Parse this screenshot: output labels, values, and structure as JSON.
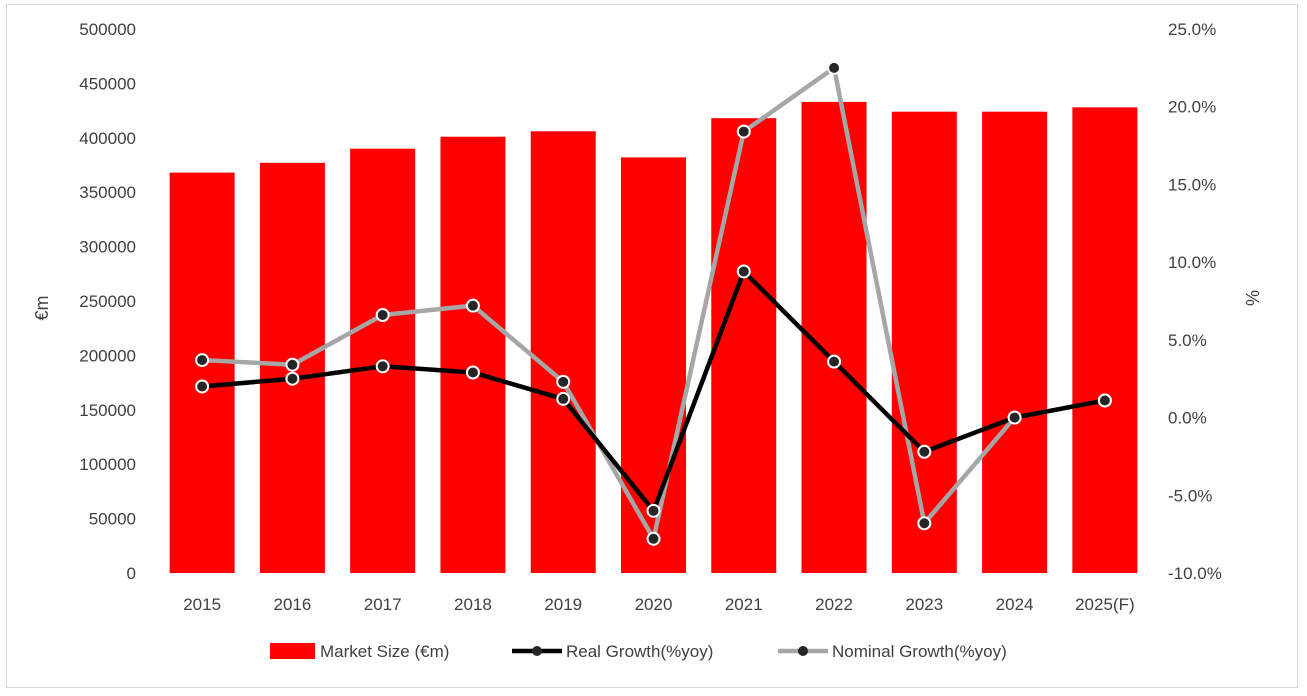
{
  "chart_data": {
    "type": "bar",
    "categories": [
      "2015",
      "2016",
      "2017",
      "2018",
      "2019",
      "2020",
      "2021",
      "2022",
      "2023",
      "2024",
      "2025(F)"
    ],
    "series": [
      {
        "name": "Market Size (€m)",
        "type": "bar",
        "axis": "left",
        "color": "#ff0000",
        "values": [
          368000,
          377000,
          390000,
          401000,
          406000,
          382000,
          418000,
          433000,
          424000,
          424000,
          428000
        ]
      },
      {
        "name": "Real Growth(%yoy)",
        "type": "line",
        "axis": "right",
        "color": "#000000",
        "values": [
          2.0,
          2.5,
          3.3,
          2.9,
          1.2,
          -6.0,
          9.4,
          3.6,
          -2.2,
          0.0,
          1.1
        ]
      },
      {
        "name": "Nominal Growth(%yoy)",
        "type": "line",
        "axis": "right",
        "color": "#a6a6a6",
        "values": [
          3.7,
          3.4,
          6.6,
          7.2,
          2.3,
          -7.8,
          18.4,
          22.5,
          -6.8,
          0.0,
          1.1
        ]
      }
    ],
    "ylabel": "€m",
    "ylim": [
      0,
      500000
    ],
    "yticks": [
      "0",
      "50000",
      "100000",
      "150000",
      "200000",
      "250000",
      "300000",
      "350000",
      "400000",
      "450000",
      "500000"
    ],
    "y2label": "%",
    "y2lim": [
      -10,
      25
    ],
    "y2ticks": [
      "-10.0%",
      "-5.0%",
      "0.0%",
      "5.0%",
      "10.0%",
      "15.0%",
      "20.0%",
      "25.0%"
    ],
    "marker_color": "#262626",
    "grid": false,
    "legend": "bottom"
  }
}
